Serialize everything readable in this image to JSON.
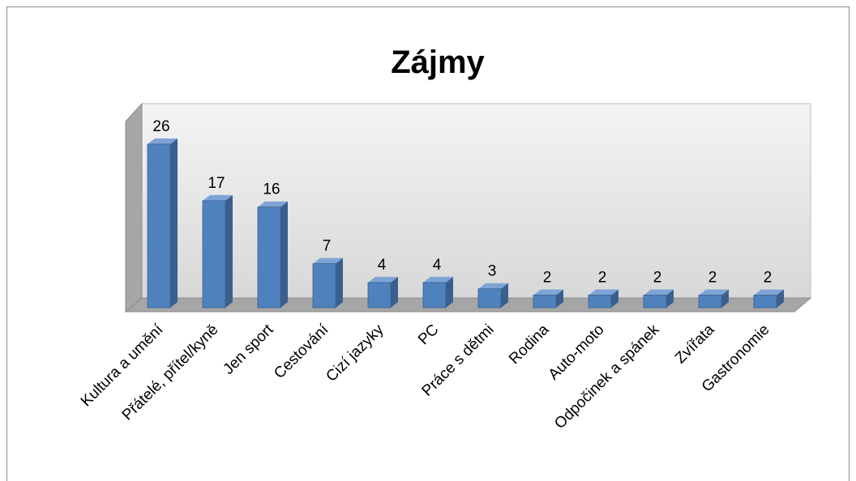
{
  "chart_data": {
    "type": "bar3d",
    "title": "Zájmy",
    "categories": [
      "Kultura a umění",
      "Přátelé, přítel/kyně",
      "Jen sport",
      "Cestování",
      "Cizí jazyky",
      "PC",
      "Práce s dětmi",
      "Rodina",
      "Auto-moto",
      "Odpočinek a spánek",
      "Zvířata",
      "Gastronomie"
    ],
    "values": [
      26,
      17,
      16,
      7,
      4,
      4,
      3,
      2,
      2,
      2,
      2,
      2
    ],
    "color": "#4f81bd"
  }
}
